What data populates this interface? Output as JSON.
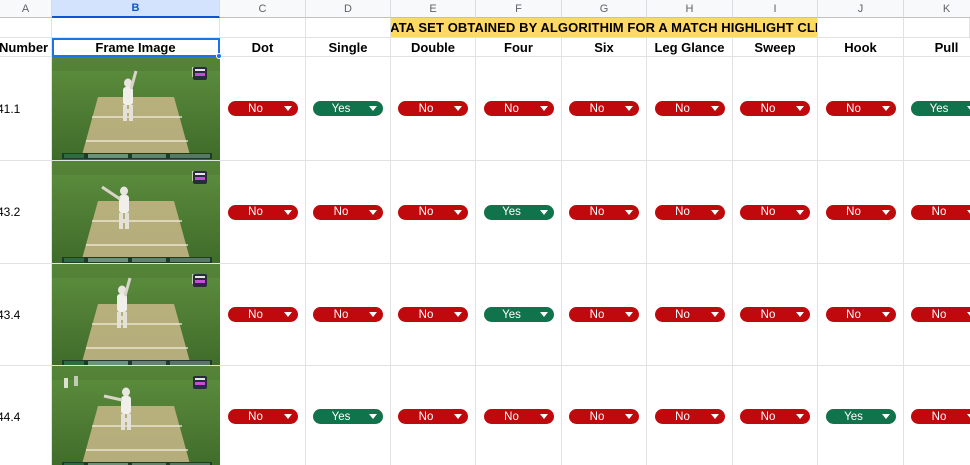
{
  "columns": {
    "letters": [
      "A",
      "B",
      "C",
      "D",
      "E",
      "F",
      "G",
      "H",
      "I",
      "J",
      "K"
    ],
    "selected": "B"
  },
  "title": "DATA SET OBTAINED BY ALGORITHIM FOR A MATCH HIGHLIGHT CLIP",
  "headers": [
    "Number",
    "Frame Image",
    "Dot",
    "Single",
    "Double",
    "Four",
    "Six",
    "Leg Glance",
    "Sweep",
    "Hook",
    "Pull"
  ],
  "rows": [
    {
      "number": "41.1",
      "values": [
        "No",
        "Yes",
        "No",
        "No",
        "No",
        "No",
        "No",
        "No",
        "Yes"
      ]
    },
    {
      "number": "43.2",
      "values": [
        "No",
        "No",
        "No",
        "Yes",
        "No",
        "No",
        "No",
        "No",
        "No"
      ]
    },
    {
      "number": "43.4",
      "values": [
        "No",
        "No",
        "No",
        "Yes",
        "No",
        "No",
        "No",
        "No",
        "No"
      ]
    },
    {
      "number": "44.4",
      "values": [
        "No",
        "Yes",
        "No",
        "No",
        "No",
        "No",
        "No",
        "Yes",
        "No"
      ]
    }
  ],
  "colors": {
    "no_chip": "#c0090d",
    "yes_chip": "#11734b",
    "title_fill": "#ffd966",
    "selection": "#1a73e8"
  },
  "icons": {
    "dropdown": "chevron-down-icon",
    "frame": "cricket-frame-thumbnail"
  }
}
